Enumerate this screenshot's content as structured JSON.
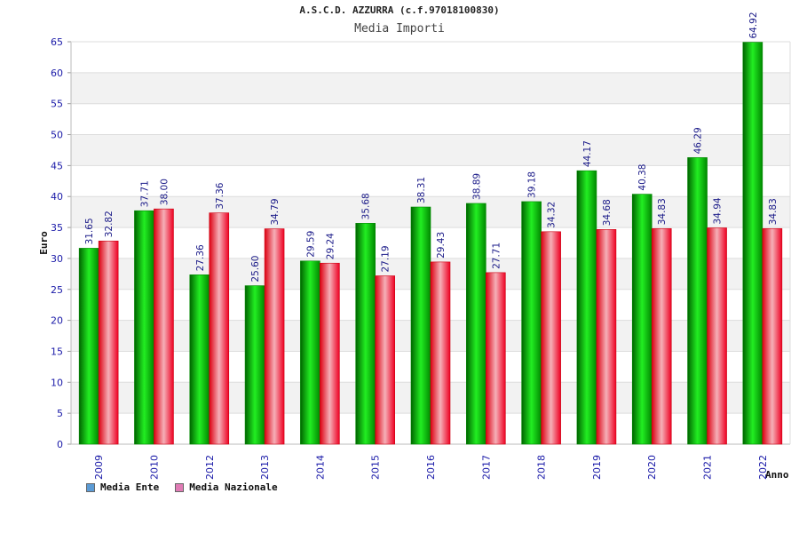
{
  "header": {
    "title": "A.S.C.D. AZZURRA (c.f.97018100830)",
    "subtitle": "Media Importi"
  },
  "legend": {
    "ente_label": "Media Ente",
    "nazionale_label": "Media Nazionale",
    "ente_color": "#5b9bd5",
    "nazionale_color": "#e07bb5"
  },
  "chart_data": {
    "type": "bar",
    "title": "Media Importi",
    "xlabel": "Anno",
    "ylabel": "Euro",
    "ylim": [
      0,
      65
    ],
    "yticks": [
      0,
      5,
      10,
      15,
      20,
      25,
      30,
      35,
      40,
      45,
      50,
      55,
      60,
      65
    ],
    "categories": [
      "2009",
      "2010",
      "2012",
      "2013",
      "2014",
      "2015",
      "2016",
      "2017",
      "2018",
      "2019",
      "2020",
      "2021",
      "2022"
    ],
    "series": [
      {
        "name": "Media Ente",
        "color": "#00c000",
        "values": [
          31.65,
          37.71,
          27.36,
          25.6,
          29.59,
          35.68,
          38.31,
          38.89,
          39.18,
          44.17,
          40.38,
          46.29,
          64.92
        ],
        "labels": [
          "31.65",
          "37.71",
          "27.36",
          "25.60",
          "29.59",
          "35.68",
          "38.31",
          "38.89",
          "39.18",
          "44.17",
          "40.38",
          "46.29",
          "64.92"
        ]
      },
      {
        "name": "Media Nazionale",
        "color": "#ee1122",
        "values": [
          32.82,
          38.0,
          37.36,
          34.79,
          29.24,
          27.19,
          29.43,
          27.71,
          34.32,
          34.68,
          34.83,
          34.94,
          34.83
        ],
        "labels": [
          "32.82",
          "38.00",
          "37.36",
          "34.79",
          "29.24",
          "27.19",
          "29.43",
          "27.71",
          "34.32",
          "34.68",
          "34.83",
          "34.94",
          "34.83"
        ]
      }
    ]
  }
}
